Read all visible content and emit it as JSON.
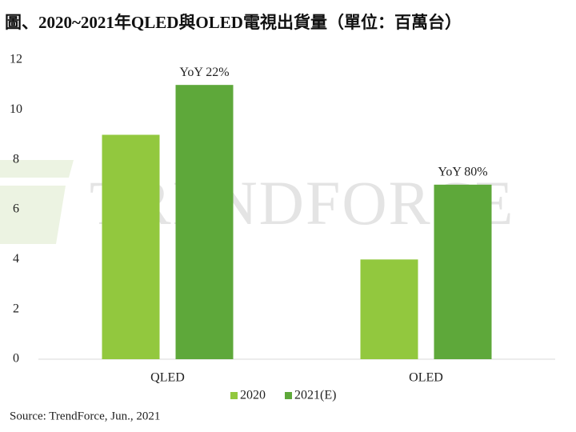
{
  "chart_data": {
    "type": "bar",
    "title": "圖、2020~2021年QLED與OLED電視出貨量（單位：百萬台）",
    "categories": [
      "QLED",
      "OLED"
    ],
    "series": [
      {
        "name": "2020",
        "color": "#92c83e",
        "values": [
          9,
          4
        ]
      },
      {
        "name": "2021(E)",
        "color": "#5ea83a",
        "values": [
          11,
          7
        ]
      }
    ],
    "annotations": [
      "YoY 22%",
      "YoY 80%"
    ],
    "ylim": [
      0,
      12
    ],
    "yticks": [
      0,
      2,
      4,
      6,
      8,
      10,
      12
    ],
    "legend": "bottom",
    "source": "Source: TrendForce, Jun., 2021",
    "watermark": "TRENDFORCE"
  }
}
